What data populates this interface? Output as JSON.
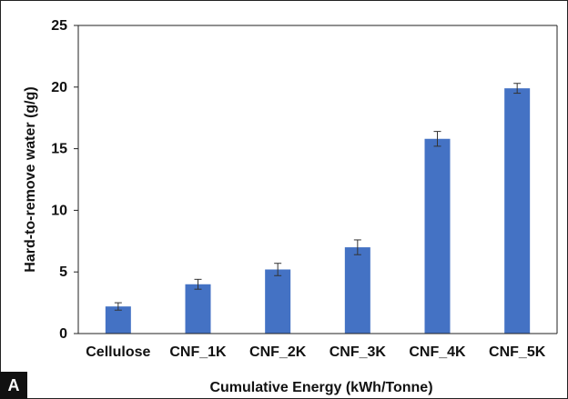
{
  "panel_label": "A",
  "chart_data": {
    "type": "bar",
    "categories": [
      "Cellulose",
      "CNF_1K",
      "CNF_2K",
      "CNF_3K",
      "CNF_4K",
      "CNF_5K"
    ],
    "values": [
      2.2,
      4.0,
      5.2,
      7.0,
      15.8,
      19.9
    ],
    "errors": [
      0.3,
      0.4,
      0.5,
      0.6,
      0.6,
      0.4
    ],
    "xlabel": "Cumulative Energy (kWh/Tonne)",
    "ylabel": "Hard-to-remove water (g/g)",
    "ylim": [
      0,
      25
    ],
    "yticks": [
      0,
      5,
      10,
      15,
      20,
      25
    ],
    "bar_color": "#4472c4",
    "grid": false
  }
}
